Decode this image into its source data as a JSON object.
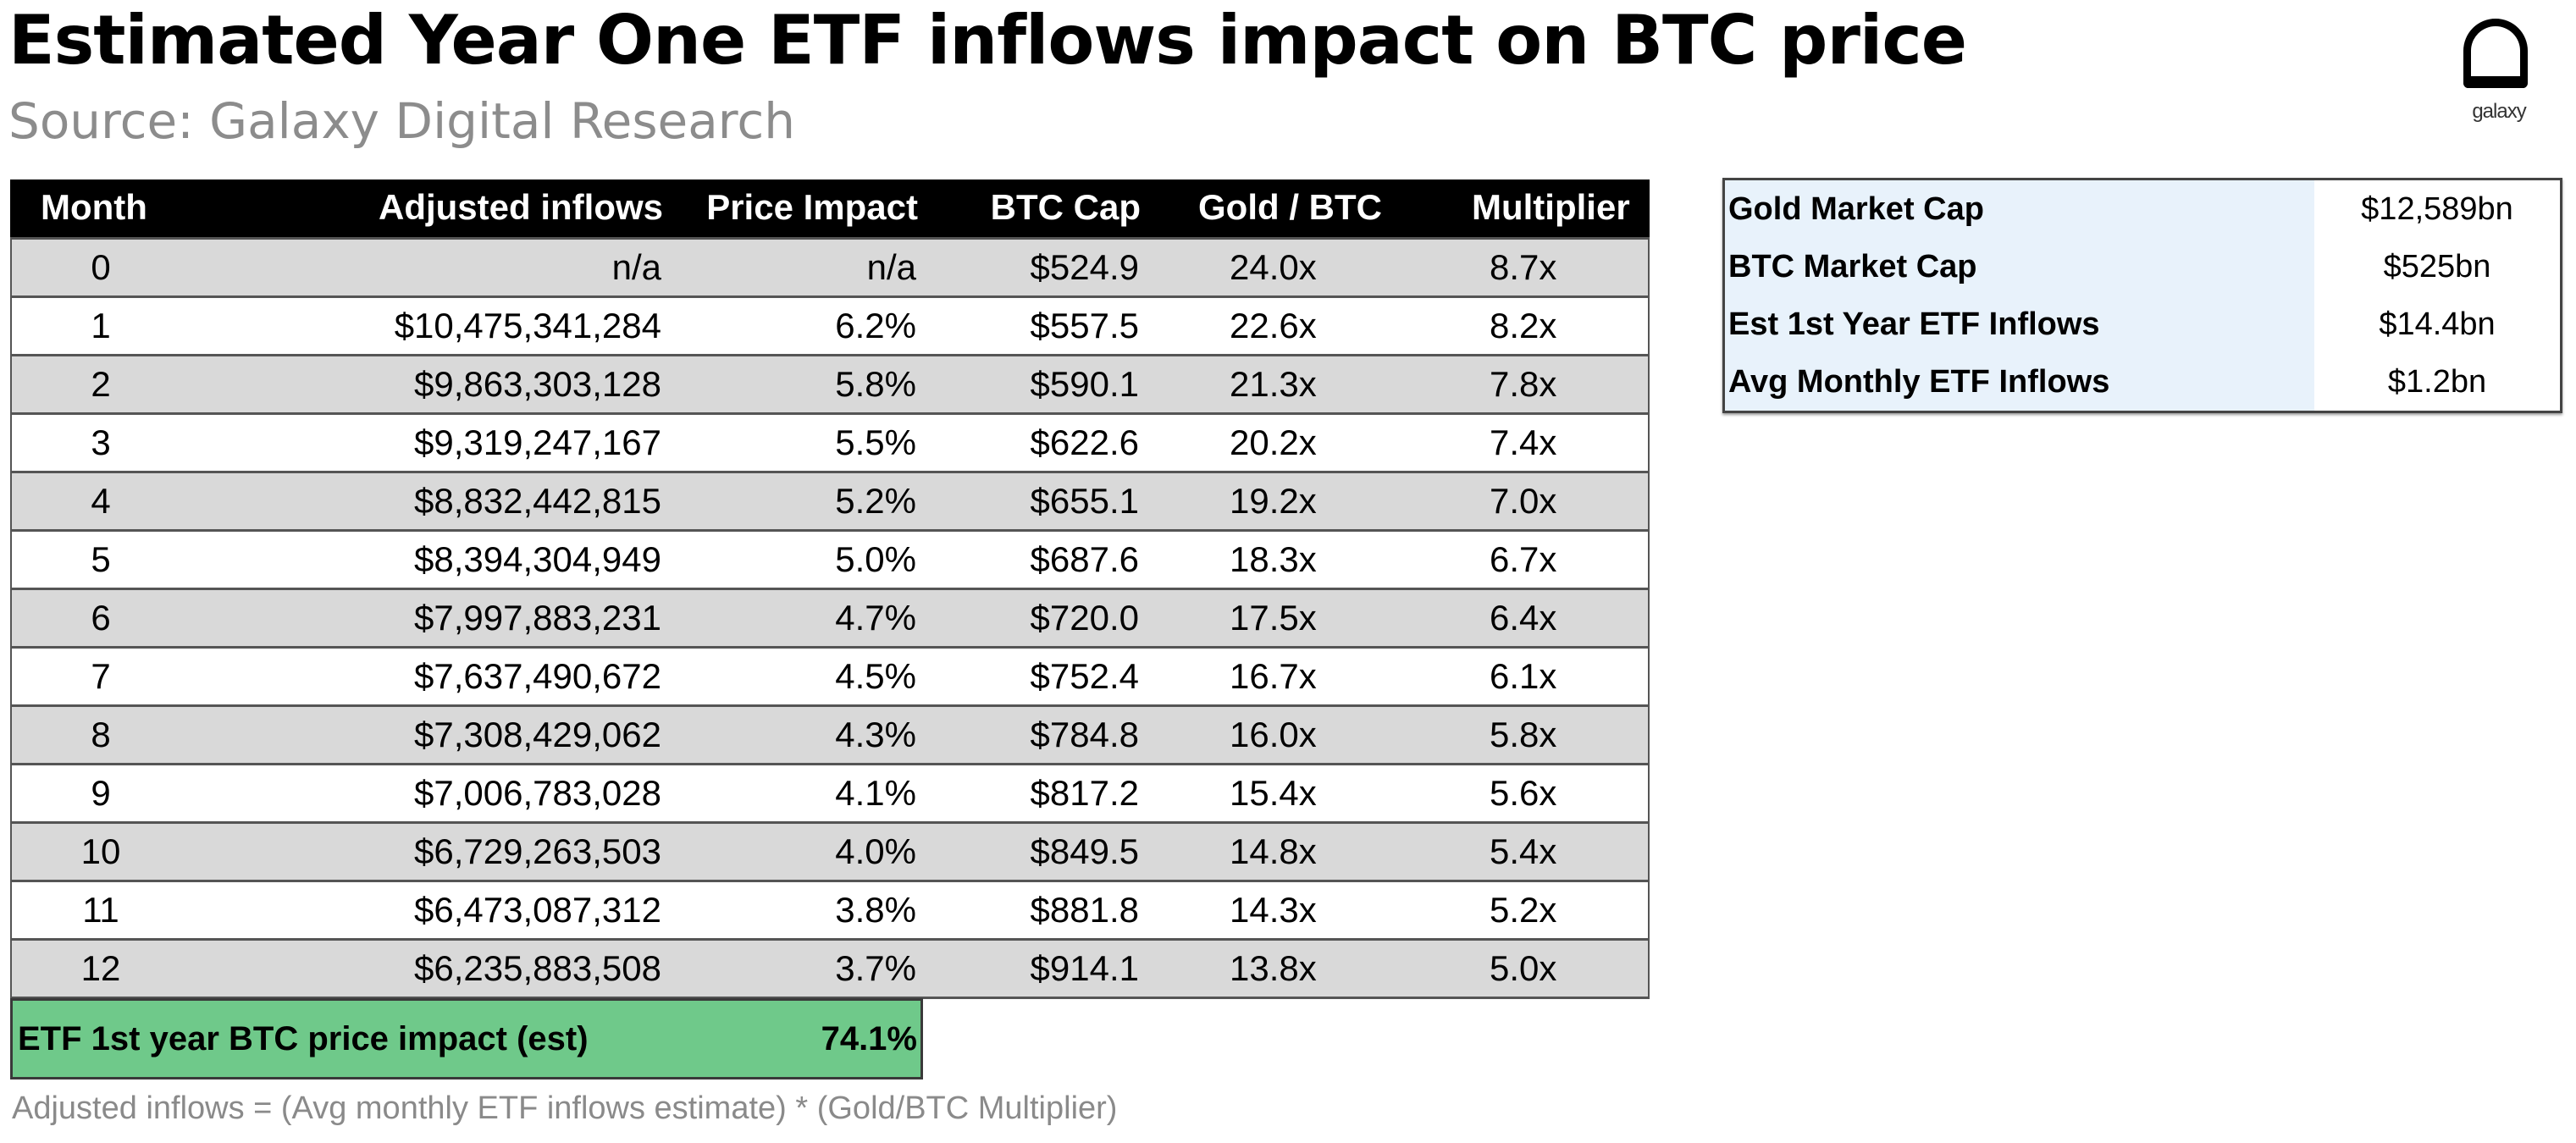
{
  "title": "Estimated Year One ETF inflows impact on BTC price",
  "subtitle": "Source: Galaxy Digital Research",
  "logo": {
    "text": "galaxy",
    "icon": "galaxy-logo-icon"
  },
  "table": {
    "headers": [
      "Month",
      "Adjusted inflows",
      "Price Impact",
      "BTC Cap",
      "Gold / BTC",
      "Multiplier"
    ],
    "rows": [
      [
        "0",
        "n/a",
        "n/a",
        "$524.9",
        "24.0x",
        "8.7x"
      ],
      [
        "1",
        "$10,475,341,284",
        "6.2%",
        "$557.5",
        "22.6x",
        "8.2x"
      ],
      [
        "2",
        "$9,863,303,128",
        "5.8%",
        "$590.1",
        "21.3x",
        "7.8x"
      ],
      [
        "3",
        "$9,319,247,167",
        "5.5%",
        "$622.6",
        "20.2x",
        "7.4x"
      ],
      [
        "4",
        "$8,832,442,815",
        "5.2%",
        "$655.1",
        "19.2x",
        "7.0x"
      ],
      [
        "5",
        "$8,394,304,949",
        "5.0%",
        "$687.6",
        "18.3x",
        "6.7x"
      ],
      [
        "6",
        "$7,997,883,231",
        "4.7%",
        "$720.0",
        "17.5x",
        "6.4x"
      ],
      [
        "7",
        "$7,637,490,672",
        "4.5%",
        "$752.4",
        "16.7x",
        "6.1x"
      ],
      [
        "8",
        "$7,308,429,062",
        "4.3%",
        "$784.8",
        "16.0x",
        "5.8x"
      ],
      [
        "9",
        "$7,006,783,028",
        "4.1%",
        "$817.2",
        "15.4x",
        "5.6x"
      ],
      [
        "10",
        "$6,729,263,503",
        "4.0%",
        "$849.5",
        "14.8x",
        "5.4x"
      ],
      [
        "11",
        "$6,473,087,312",
        "3.8%",
        "$881.8",
        "14.3x",
        "5.2x"
      ],
      [
        "12",
        "$6,235,883,508",
        "3.7%",
        "$914.1",
        "13.8x",
        "5.0x"
      ]
    ],
    "total": {
      "label": "ETF 1st year BTC price impact (est)",
      "value": "74.1%"
    }
  },
  "footnote": "Adjusted inflows = (Avg monthly ETF inflows estimate) * (Gold/BTC Multiplier)",
  "summary": [
    {
      "label": "Gold Market Cap",
      "value": "$12,589bn"
    },
    {
      "label": "BTC Market Cap",
      "value": "$525bn"
    },
    {
      "label": "Est 1st Year ETF Inflows",
      "value": "$14.4bn"
    },
    {
      "label": "Avg Monthly ETF Inflows",
      "value": "$1.2bn"
    }
  ],
  "colors": {
    "header": "#000000",
    "stripe": "#d9d9d9",
    "total": "#6fc98a",
    "summary_label": "#e8f2fb"
  }
}
